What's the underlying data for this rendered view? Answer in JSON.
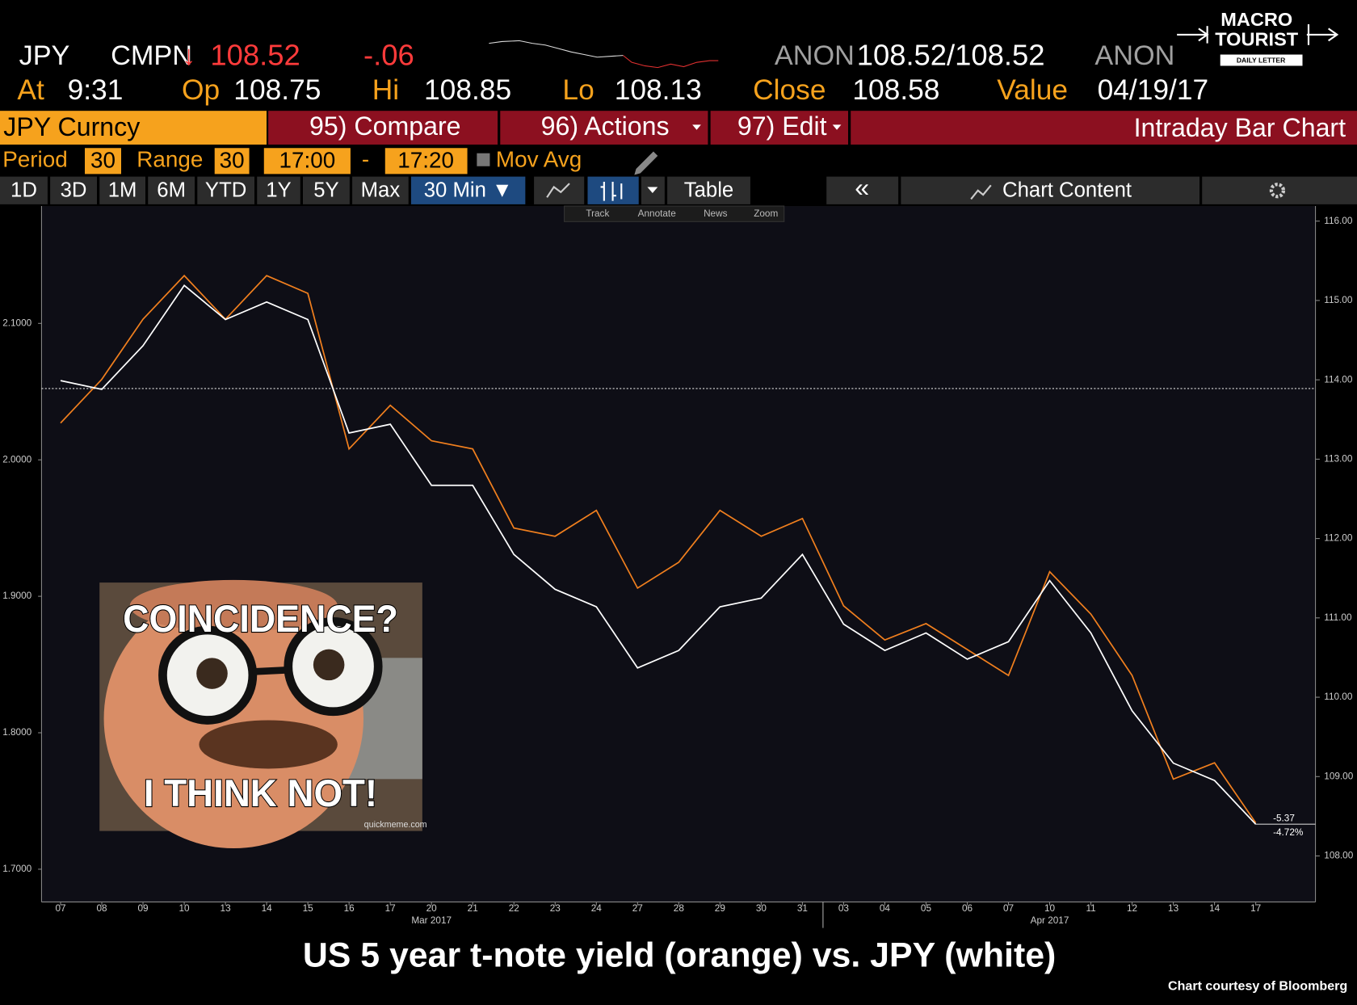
{
  "header": {
    "ticker": "JPY",
    "source": "CMPN",
    "arrow": "↓",
    "last": "108.52",
    "change": "-.06",
    "bid_src": "ANON",
    "bid_ask": "108.52/108.52",
    "ask_src": "ANON",
    "at_label": "At",
    "at": "9:31",
    "op_label": "Op",
    "op": "108.75",
    "hi_label": "Hi",
    "hi": "108.85",
    "lo_label": "Lo",
    "lo": "108.13",
    "close_label": "Close",
    "close": "108.58",
    "value_label": "Value",
    "value": "04/19/17"
  },
  "logo": {
    "line1": "MACRO",
    "line2": "TOURIST",
    "line3": "DAILY LETTER"
  },
  "menu": {
    "security": "JPY Curncy",
    "compare": "95) Compare",
    "actions": "96) Actions",
    "edit": "97) Edit",
    "view": "Intraday Bar Chart"
  },
  "settings": {
    "period_label": "Period",
    "period": "30",
    "range_label": "Range",
    "range": "30",
    "start": "17:00",
    "dash": "-",
    "end": "17:20",
    "mov_avg": "Mov Avg"
  },
  "toolbar": {
    "ranges": [
      "1D",
      "3D",
      "1M",
      "6M",
      "YTD",
      "1Y",
      "5Y",
      "Max"
    ],
    "interval": "30 Min ▼",
    "table": "Table",
    "collapse": "«",
    "chart_content": "Chart Content"
  },
  "tools": [
    "Track",
    "Annotate",
    "News",
    "Zoom"
  ],
  "meme": {
    "top": "COINCIDENCE?",
    "bottom": "I THINK NOT!",
    "watermark": "quickmeme.com"
  },
  "chart_data": {
    "type": "line",
    "title": "US 5 year t-note yield (orange) vs. JPY (white)",
    "source": "Chart courtesy of Bloomberg",
    "categories": [
      "07",
      "08",
      "09",
      "10",
      "13",
      "14",
      "15",
      "16",
      "17",
      "20",
      "21",
      "22",
      "23",
      "24",
      "27",
      "28",
      "29",
      "30",
      "31",
      "03",
      "04",
      "05",
      "06",
      "07",
      "10",
      "11",
      "12",
      "13",
      "14",
      "17"
    ],
    "x_groups": [
      "Mar 2017",
      "Apr 2017"
    ],
    "series": [
      {
        "color": "#f07f1e",
        "values": [
          2.027,
          2.059,
          2.103,
          2.135,
          2.103,
          2.135,
          2.122,
          2.008,
          2.04,
          2.014,
          2.008,
          1.95,
          1.944,
          1.963,
          1.906,
          1.925,
          1.963,
          1.944,
          1.957,
          1.893,
          1.868,
          1.88,
          1.861,
          1.842,
          1.918,
          1.887,
          1.842,
          1.766,
          1.778,
          1.734
        ]
      },
      {
        "color": "#ffffff",
        "axis": "y2",
        "values": [
          113.99,
          113.88,
          114.43,
          115.19,
          114.76,
          114.98,
          114.76,
          113.33,
          113.44,
          112.67,
          112.67,
          111.8,
          111.36,
          111.14,
          110.37,
          110.59,
          111.14,
          111.25,
          111.8,
          110.92,
          110.59,
          110.81,
          110.48,
          110.7,
          111.47,
          110.81,
          109.83,
          109.17,
          108.95,
          108.4
        ]
      }
    ],
    "ylim": [
      1.676,
      2.186
    ],
    "yticks": [
      {
        "value": 1.7,
        "label": "1.7000"
      },
      {
        "value": 1.8,
        "label": "1.8000"
      },
      {
        "value": 1.9,
        "label": "1.9000"
      },
      {
        "value": 2.0,
        "label": "2.0000"
      },
      {
        "value": 2.1,
        "label": "2.1000"
      }
    ],
    "y2lim": [
      107.42,
      116.19
    ],
    "y2ticks": [
      {
        "value": 108,
        "label": "108.00"
      },
      {
        "value": 109,
        "label": "109.00"
      },
      {
        "value": 110,
        "label": "110.00"
      },
      {
        "value": 111,
        "label": "111.00"
      },
      {
        "value": 112,
        "label": "112.00"
      },
      {
        "value": 113,
        "label": "113.00"
      },
      {
        "value": 114,
        "label": "114.00"
      },
      {
        "value": 115,
        "label": "115.00"
      },
      {
        "value": 116,
        "label": "116.00"
      }
    ],
    "reference_line_y2": 113.89,
    "end_labels": [
      "-5.37",
      "-4.72%"
    ]
  }
}
